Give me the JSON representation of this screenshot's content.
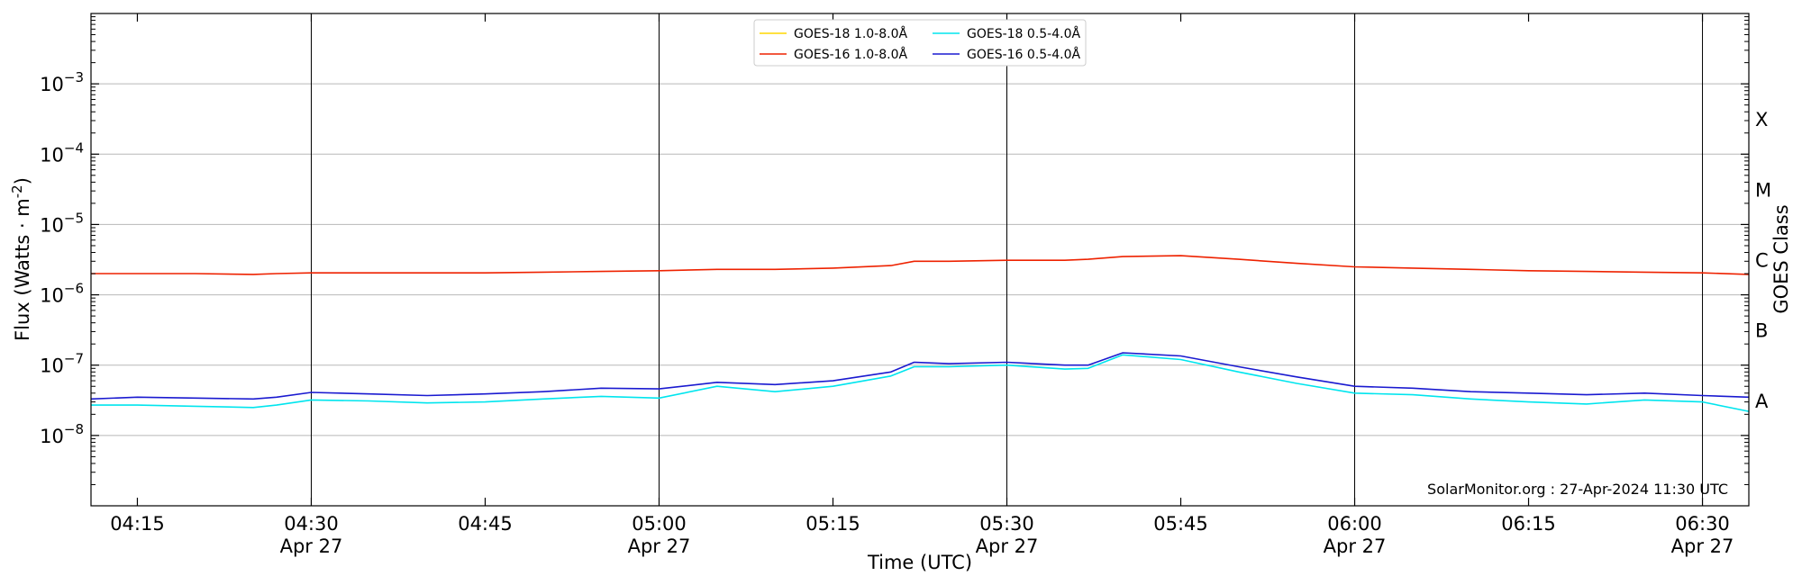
{
  "chart_data": {
    "type": "line",
    "title": "",
    "xlabel": "Time (UTC)",
    "ylabel": "Flux (Watts · m",
    "ylabel_sup": "-2",
    "ylabel_close": ")",
    "y2label": "GOES Class",
    "yscale": "log",
    "ylim": [
      1e-09,
      0.01
    ],
    "xlim_minutes": [
      251,
      394
    ],
    "grid": "horizontal",
    "legend_position": "top-center",
    "credit": "SolarMonitor.org : 27-Apr-2024 11:30 UTC",
    "y_ticks": [
      {
        "value": 1e-08,
        "label": "10",
        "exp": "−8"
      },
      {
        "value": 1e-07,
        "label": "10",
        "exp": "−7"
      },
      {
        "value": 1e-06,
        "label": "10",
        "exp": "−6"
      },
      {
        "value": 1e-05,
        "label": "10",
        "exp": "−5"
      },
      {
        "value": 0.0001,
        "label": "10",
        "exp": "−4"
      },
      {
        "value": 0.001,
        "label": "10",
        "exp": "−3"
      }
    ],
    "class_labels": [
      {
        "value": 3.16e-08,
        "label": "A"
      },
      {
        "value": 3.16e-07,
        "label": "B"
      },
      {
        "value": 3.16e-06,
        "label": "C"
      },
      {
        "value": 3.16e-05,
        "label": "M"
      },
      {
        "value": 0.000316,
        "label": "X"
      }
    ],
    "x_ticks": [
      {
        "minute": 255,
        "time": "04:15",
        "date": ""
      },
      {
        "minute": 270,
        "time": "04:30",
        "date": "Apr 27"
      },
      {
        "minute": 285,
        "time": "04:45",
        "date": ""
      },
      {
        "minute": 300,
        "time": "05:00",
        "date": "Apr 27"
      },
      {
        "minute": 315,
        "time": "05:15",
        "date": ""
      },
      {
        "minute": 330,
        "time": "05:30",
        "date": "Apr 27"
      },
      {
        "minute": 345,
        "time": "05:45",
        "date": ""
      },
      {
        "minute": 360,
        "time": "06:00",
        "date": "Apr 27"
      },
      {
        "minute": 375,
        "time": "06:15",
        "date": ""
      },
      {
        "minute": 390,
        "time": "06:30",
        "date": "Apr 27"
      }
    ],
    "vertical_lines_minutes": [
      270,
      300,
      330,
      360,
      390
    ],
    "x_times": [
      "04:11",
      "04:15",
      "04:20",
      "04:25",
      "04:27",
      "04:30",
      "04:35",
      "04:40",
      "04:45",
      "04:50",
      "04:55",
      "05:00",
      "05:05",
      "05:10",
      "05:15",
      "05:20",
      "05:22",
      "05:25",
      "05:30",
      "05:35",
      "05:37",
      "05:40",
      "05:45",
      "05:50",
      "05:55",
      "06:00",
      "06:05",
      "06:10",
      "06:15",
      "06:20",
      "06:25",
      "06:30",
      "06:34"
    ],
    "series": [
      {
        "name": "GOES-18 1.0-8.0Å",
        "color": "#ffd700",
        "values": []
      },
      {
        "name": "GOES-16 1.0-8.0Å",
        "color": "#ee2200",
        "values": [
          2e-06,
          2e-06,
          2e-06,
          1.95e-06,
          2e-06,
          2.05e-06,
          2.05e-06,
          2.05e-06,
          2.05e-06,
          2.1e-06,
          2.15e-06,
          2.2e-06,
          2.3e-06,
          2.3e-06,
          2.4e-06,
          2.6e-06,
          3e-06,
          3e-06,
          3.1e-06,
          3.1e-06,
          3.2e-06,
          3.5e-06,
          3.6e-06,
          3.2e-06,
          2.8e-06,
          2.5e-06,
          2.4e-06,
          2.3e-06,
          2.2e-06,
          2.15e-06,
          2.1e-06,
          2.05e-06,
          1.95e-06
        ]
      },
      {
        "name": "GOES-18 0.5-4.0Å",
        "color": "#00e5ee",
        "values": [
          2.7e-08,
          2.7e-08,
          2.6e-08,
          2.5e-08,
          2.7e-08,
          3.2e-08,
          3.1e-08,
          2.9e-08,
          3e-08,
          3.3e-08,
          3.6e-08,
          3.4e-08,
          5e-08,
          4.2e-08,
          5e-08,
          7e-08,
          9.5e-08,
          9.5e-08,
          1e-07,
          8.8e-08,
          9e-08,
          1.4e-07,
          1.2e-07,
          8e-08,
          5.5e-08,
          4e-08,
          3.8e-08,
          3.3e-08,
          3e-08,
          2.8e-08,
          3.2e-08,
          3e-08,
          2.2e-08
        ]
      },
      {
        "name": "GOES-16 0.5-4.0Å",
        "color": "#1a1ad0",
        "values": [
          3.3e-08,
          3.5e-08,
          3.4e-08,
          3.3e-08,
          3.5e-08,
          4.1e-08,
          3.9e-08,
          3.7e-08,
          3.9e-08,
          4.2e-08,
          4.7e-08,
          4.6e-08,
          5.7e-08,
          5.3e-08,
          6e-08,
          8e-08,
          1.1e-07,
          1.05e-07,
          1.1e-07,
          1e-07,
          1e-07,
          1.5e-07,
          1.35e-07,
          9.5e-08,
          6.8e-08,
          5e-08,
          4.7e-08,
          4.2e-08,
          4e-08,
          3.8e-08,
          4e-08,
          3.7e-08,
          3.5e-08
        ]
      }
    ]
  }
}
